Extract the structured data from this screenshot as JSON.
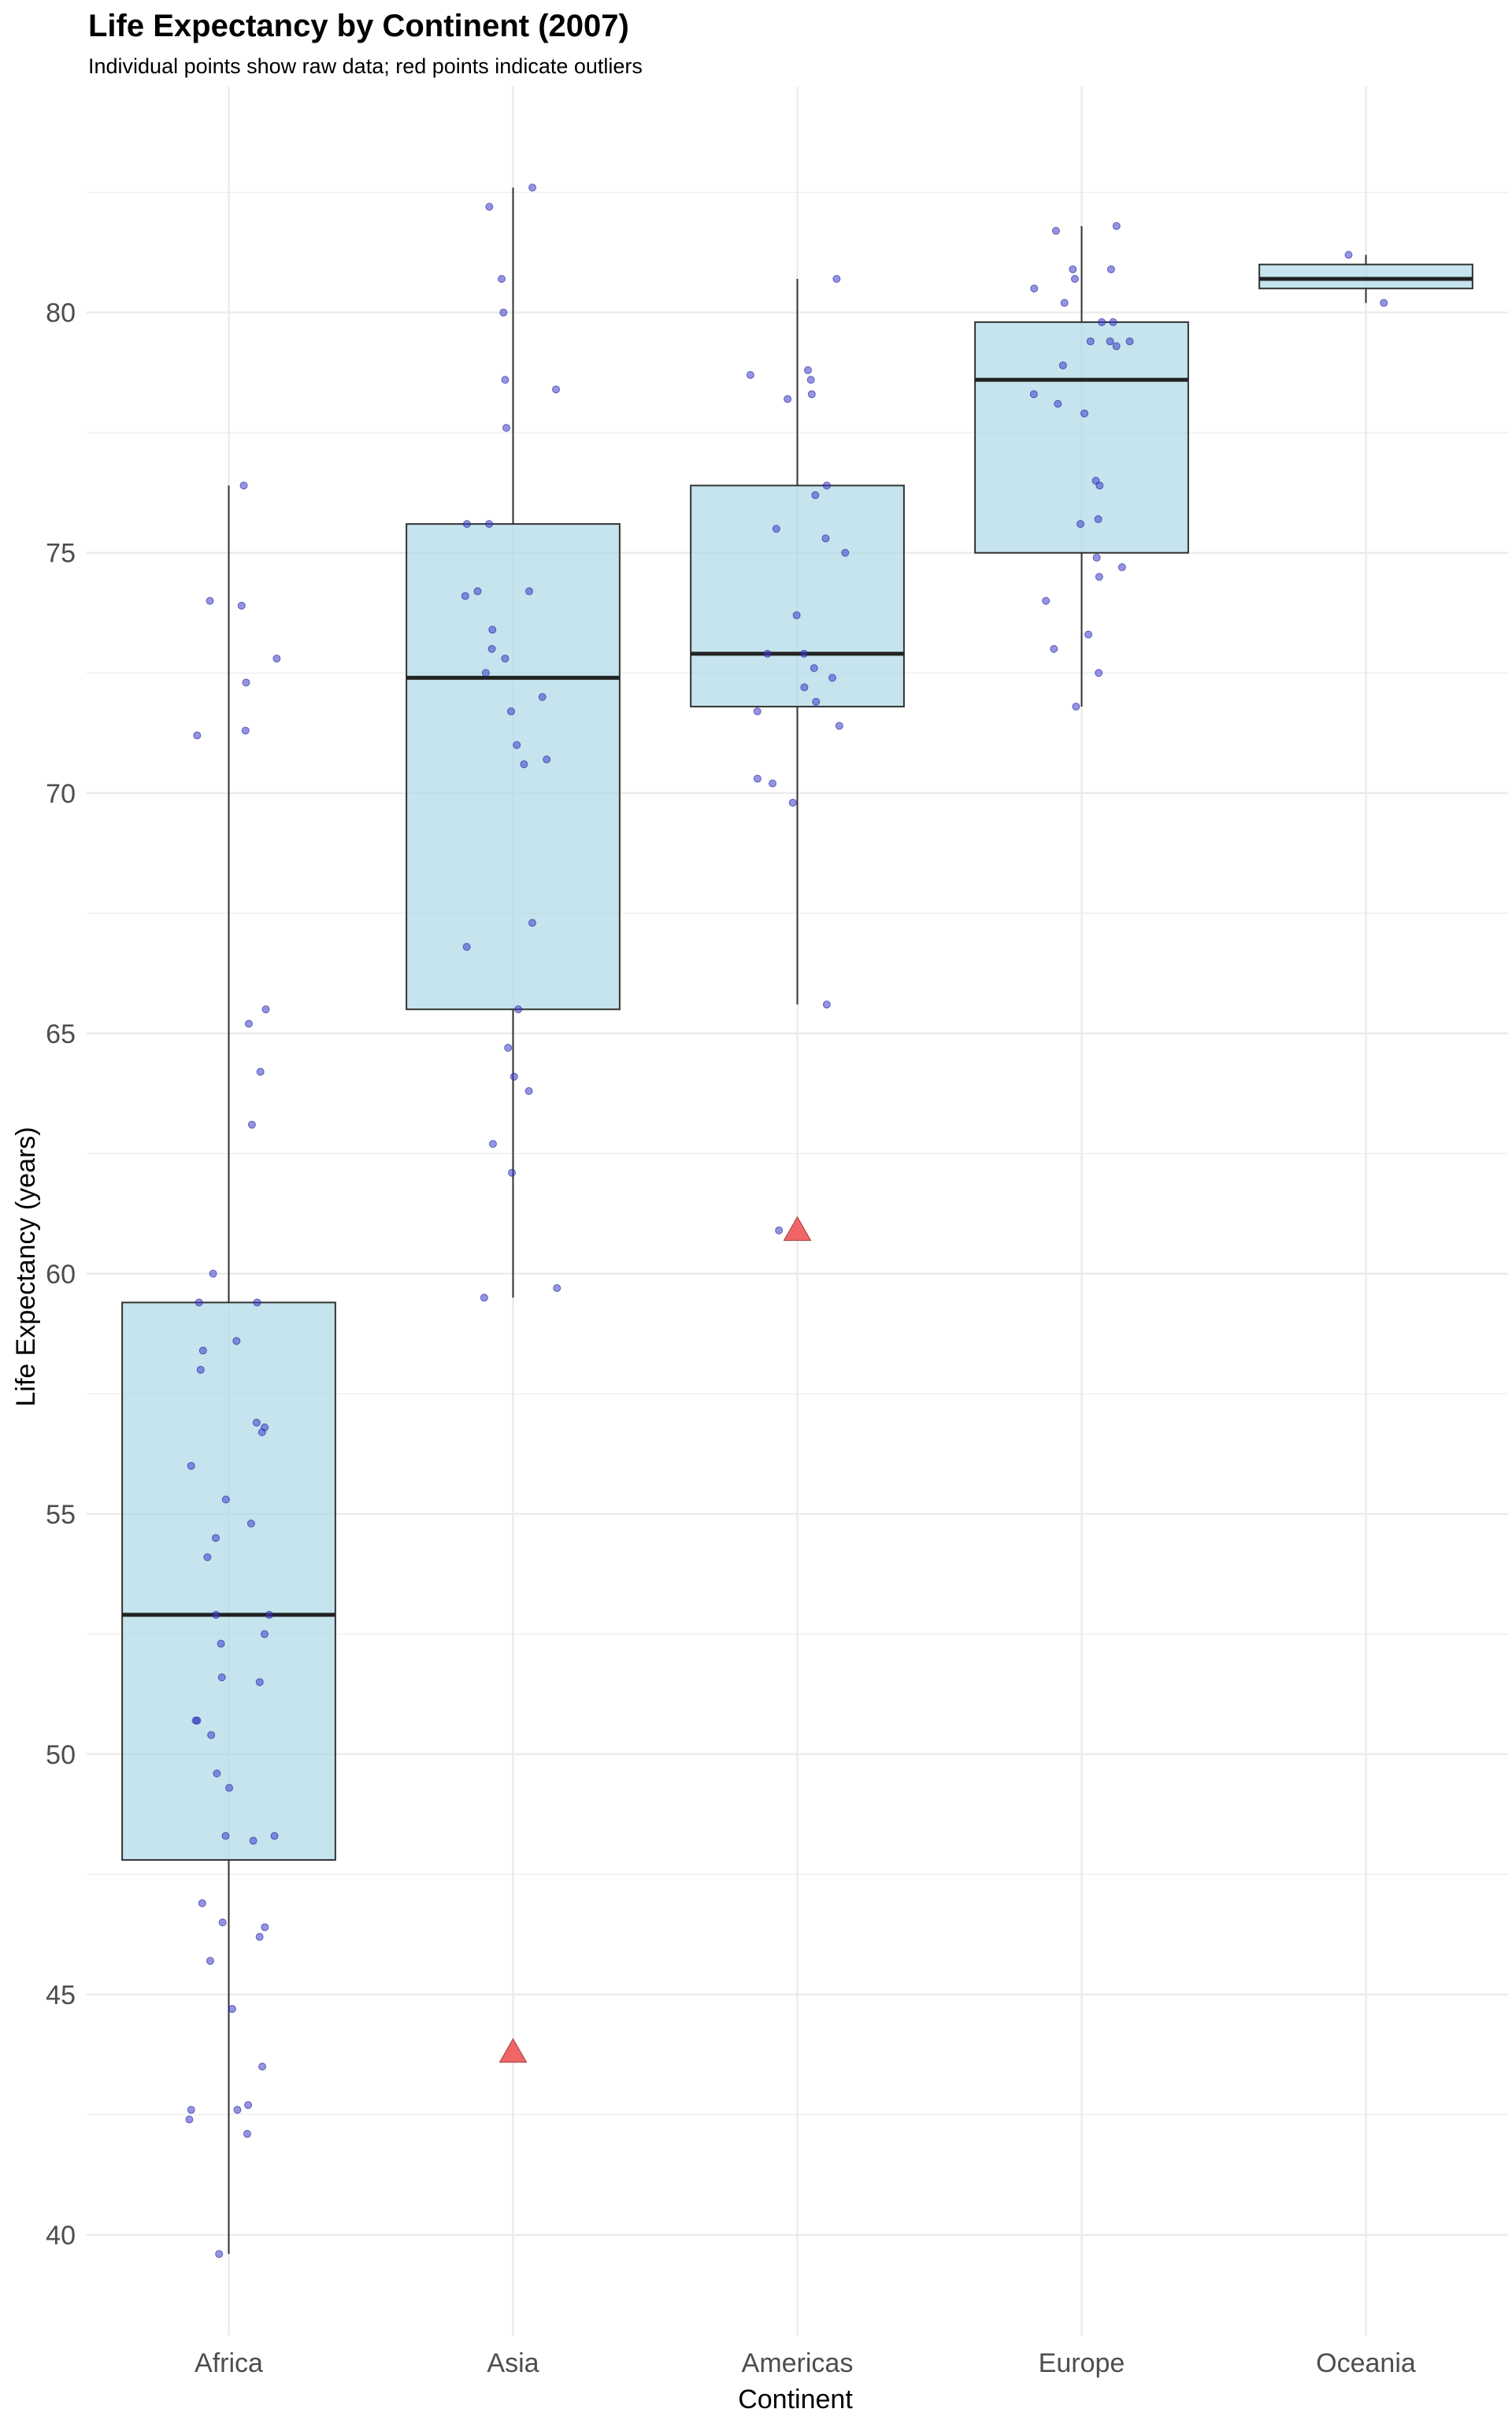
{
  "chart_data": {
    "type": "box",
    "title": "Life Expectancy by Continent (2007)",
    "subtitle": "Individual points show raw data; red points indicate outliers",
    "xlabel": "Continent",
    "ylabel": "Life Expectancy (years)",
    "categories": [
      "Africa",
      "Asia",
      "Americas",
      "Europe",
      "Oceania"
    ],
    "ylim": [
      37.9,
      84.7
    ],
    "yticks": [
      40,
      45,
      50,
      55,
      60,
      65,
      70,
      75,
      80
    ],
    "grid": true,
    "legend": "none",
    "colors": {
      "box_fill": "#add8e6",
      "point": "#3d3dcc",
      "outlier": "#f06666",
      "grid": "#ebebeb"
    },
    "boxes": [
      {
        "category": "Africa",
        "whisker_low": 39.6,
        "q1": 47.8,
        "median": 52.9,
        "q3": 59.4,
        "whisker_high": 76.4
      },
      {
        "category": "Asia",
        "whisker_low": 59.5,
        "q1": 65.5,
        "median": 72.4,
        "q3": 75.6,
        "whisker_high": 82.6
      },
      {
        "category": "Americas",
        "whisker_low": 65.6,
        "q1": 71.8,
        "median": 72.9,
        "q3": 76.4,
        "whisker_high": 80.7
      },
      {
        "category": "Europe",
        "whisker_low": 71.8,
        "q1": 75.0,
        "median": 78.6,
        "q3": 79.8,
        "whisker_high": 81.8
      },
      {
        "category": "Oceania",
        "whisker_low": 80.2,
        "q1": 80.5,
        "median": 80.7,
        "q3": 81.0,
        "whisker_high": 81.2
      }
    ],
    "outliers": [
      {
        "category": "Asia",
        "value": 43.8
      },
      {
        "category": "Americas",
        "value": 60.9
      }
    ],
    "points": [
      {
        "category": "Africa",
        "values": [
          76.4,
          74.0,
          73.9,
          72.8,
          72.3,
          71.3,
          71.2,
          65.5,
          65.2,
          64.2,
          63.1,
          60.0,
          59.4,
          59.4,
          58.6,
          58.4,
          58.0,
          56.9,
          56.8,
          56.7,
          56.0,
          55.3,
          54.8,
          54.5,
          54.1,
          52.9,
          52.9,
          52.5,
          52.3,
          51.6,
          51.5,
          50.7,
          50.7,
          50.4,
          49.6,
          49.3,
          48.3,
          48.3,
          48.2,
          46.9,
          46.5,
          46.4,
          46.2,
          45.7,
          44.7,
          43.5,
          42.7,
          42.6,
          42.6,
          42.4,
          42.1,
          39.6
        ]
      },
      {
        "category": "Asia",
        "values": [
          82.6,
          82.2,
          80.7,
          80.0,
          78.6,
          78.4,
          77.6,
          75.6,
          75.6,
          74.2,
          74.2,
          74.1,
          73.4,
          73.0,
          72.8,
          72.5,
          72.0,
          71.7,
          71.0,
          70.7,
          70.6,
          67.3,
          66.8,
          65.5,
          64.7,
          64.1,
          63.8,
          62.7,
          62.1,
          59.7,
          59.5,
          43.8
        ]
      },
      {
        "category": "Americas",
        "values": [
          80.7,
          78.8,
          78.7,
          78.6,
          78.3,
          78.2,
          76.4,
          76.2,
          75.5,
          75.3,
          75.0,
          73.7,
          72.9,
          72.9,
          72.6,
          72.4,
          72.2,
          71.9,
          71.7,
          71.4,
          70.3,
          70.2,
          69.8,
          65.6,
          60.9
        ]
      },
      {
        "category": "Europe",
        "values": [
          81.8,
          81.7,
          80.9,
          80.9,
          80.7,
          80.5,
          80.2,
          79.8,
          79.8,
          79.4,
          79.4,
          79.4,
          79.3,
          78.9,
          78.3,
          78.1,
          77.9,
          76.5,
          76.4,
          75.7,
          75.6,
          74.9,
          74.7,
          74.5,
          74.0,
          73.3,
          73.0,
          72.5,
          71.8
        ]
      },
      {
        "category": "Oceania",
        "values": [
          81.2,
          80.2
        ]
      }
    ]
  }
}
